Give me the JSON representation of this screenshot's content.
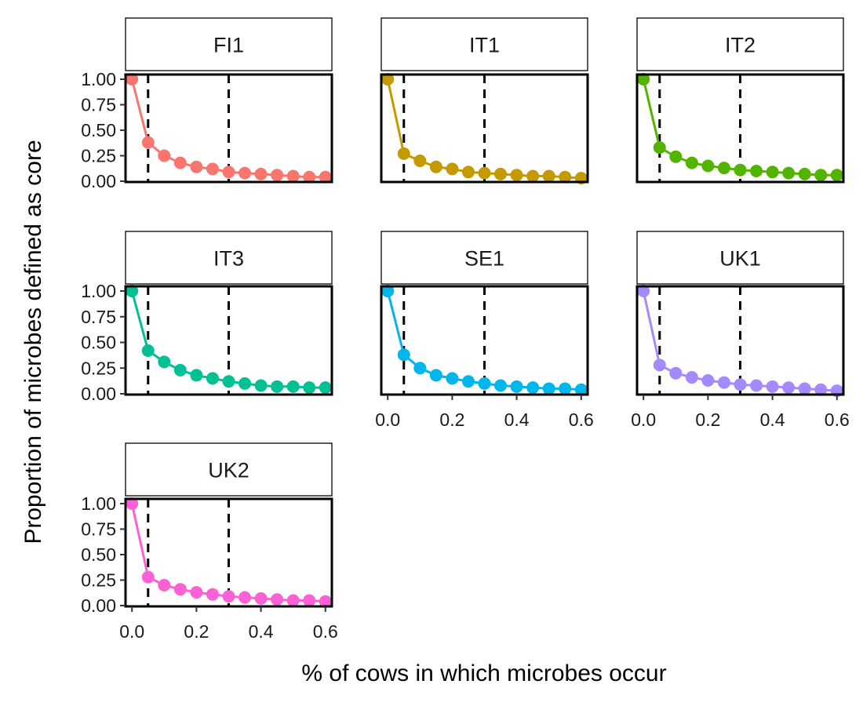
{
  "chart_data": {
    "type": "line",
    "layout": "faceted 3x3 grid (facet_wrap), free x axis shown only on bottom row of each column",
    "xlabel": "% of cows in which microbes occur",
    "ylabel": "Proportion of microbes defined as core",
    "xlim": [
      -0.02,
      0.62
    ],
    "ylim": [
      0,
      1.0
    ],
    "x_ticks": [
      0.0,
      0.2,
      0.4,
      0.6
    ],
    "x_tick_labels": [
      "0.0",
      "0.2",
      "0.4",
      "0.6"
    ],
    "y_ticks": [
      0,
      0.25,
      0.5,
      0.75,
      1.0
    ],
    "y_tick_labels": [
      "0.00",
      "0.25",
      "0.50",
      "0.75",
      "1.00"
    ],
    "reference_lines_x": [
      0.05,
      0.3
    ],
    "reference_line_style": "dashed black",
    "x": [
      0.0,
      0.05,
      0.1,
      0.15,
      0.2,
      0.25,
      0.3,
      0.35,
      0.4,
      0.45,
      0.5,
      0.55,
      0.6
    ],
    "series": [
      {
        "name": "FI1",
        "color": "#F8766D",
        "values": [
          1.0,
          0.38,
          0.25,
          0.18,
          0.14,
          0.12,
          0.09,
          0.08,
          0.07,
          0.06,
          0.05,
          0.04,
          0.04
        ]
      },
      {
        "name": "IT1",
        "color": "#C49A00",
        "values": [
          1.0,
          0.27,
          0.2,
          0.14,
          0.12,
          0.09,
          0.08,
          0.07,
          0.06,
          0.05,
          0.05,
          0.04,
          0.03
        ]
      },
      {
        "name": "IT2",
        "color": "#53B400",
        "values": [
          1.0,
          0.33,
          0.24,
          0.18,
          0.15,
          0.13,
          0.11,
          0.1,
          0.09,
          0.08,
          0.07,
          0.06,
          0.06
        ]
      },
      {
        "name": "IT3",
        "color": "#00C094",
        "values": [
          1.0,
          0.42,
          0.31,
          0.23,
          0.18,
          0.15,
          0.12,
          0.1,
          0.08,
          0.07,
          0.07,
          0.06,
          0.06
        ]
      },
      {
        "name": "SE1",
        "color": "#00B6EB",
        "values": [
          1.0,
          0.38,
          0.25,
          0.18,
          0.15,
          0.12,
          0.1,
          0.08,
          0.07,
          0.06,
          0.05,
          0.05,
          0.04
        ]
      },
      {
        "name": "UK1",
        "color": "#A58AFF",
        "values": [
          1.0,
          0.28,
          0.2,
          0.16,
          0.13,
          0.11,
          0.09,
          0.08,
          0.07,
          0.06,
          0.05,
          0.04,
          0.03
        ]
      },
      {
        "name": "UK2",
        "color": "#FB61D7",
        "values": [
          1.0,
          0.28,
          0.2,
          0.16,
          0.13,
          0.11,
          0.09,
          0.08,
          0.07,
          0.06,
          0.05,
          0.05,
          0.04
        ]
      }
    ]
  }
}
